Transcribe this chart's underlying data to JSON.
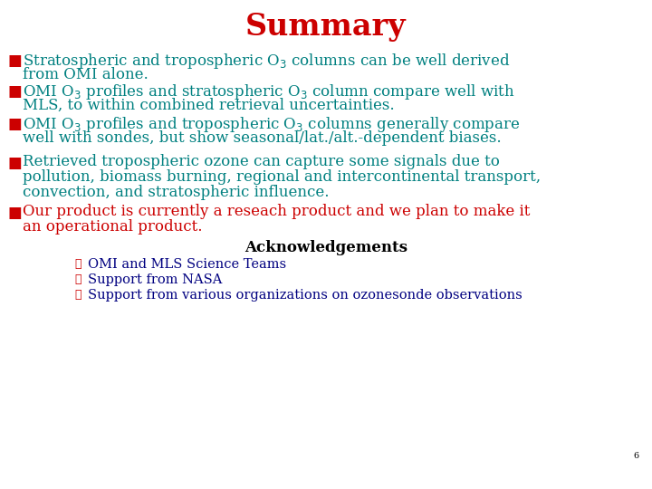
{
  "title": "Summary",
  "title_color": "#cc0000",
  "title_fontsize": 24,
  "bg_color": "#ffffff",
  "line_color": "#008080",
  "bullet_sq_color": "#cc0000",
  "main_text_color": "#008080",
  "bullet_fontsize": 12,
  "bullets": [
    {
      "lines": [
        "Stratospheric and tropospheric O$_3$ columns can be well derived",
        "from OMI alone."
      ],
      "color": "#008080"
    },
    {
      "lines": [
        "OMI O$_3$ profiles and stratospheric O$_3$ column compare well with",
        "MLS, to within combined retrieval uncertainties."
      ],
      "color": "#008080"
    },
    {
      "lines": [
        "OMI O$_3$ profiles and tropospheric O$_3$ columns generally compare",
        "well with sondes, but show seasonal/lat./alt.-dependent biases."
      ],
      "color": "#008080"
    },
    {
      "lines": [
        "Retrieved tropospheric ozone can capture some signals due to",
        "pollution, biomass burning, regional and intercontinental transport,",
        "convection, and stratospheric influence."
      ],
      "color": "#008080"
    },
    {
      "lines": [
        "Our product is currently a reseach product and we plan to make it",
        "an operational product."
      ],
      "color": "#cc0000"
    }
  ],
  "ack_title": "Acknowledgements",
  "ack_title_color": "#000000",
  "ack_title_fontsize": 12,
  "ack_items": [
    "OMI and MLS Science Teams",
    "Support from NASA",
    "Support from various organizations on ozonesonde observations"
  ],
  "ack_color": "#000080",
  "ack_fontsize": 10.5,
  "ack_bg_color": "#fffff0",
  "page_number": "6"
}
